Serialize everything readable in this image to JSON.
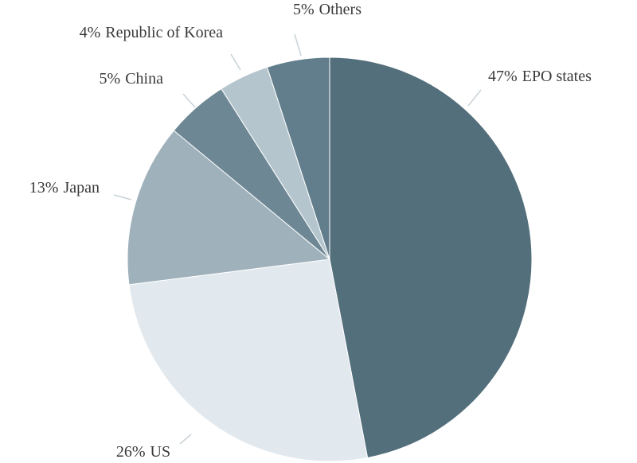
{
  "chart_data": {
    "type": "pie",
    "categories": [
      "EPO states",
      "US",
      "Japan",
      "China",
      "Republic of Korea",
      "Others"
    ],
    "values": [
      47,
      26,
      13,
      5,
      4,
      5
    ],
    "value_labels": [
      "47%",
      "26%",
      "13%",
      "5%",
      "4%",
      "5%"
    ],
    "colors": [
      "#546f7c",
      "#e2e9ee",
      "#9fb2bc",
      "#6e8794",
      "#b5c5ce",
      "#627d8b"
    ]
  }
}
